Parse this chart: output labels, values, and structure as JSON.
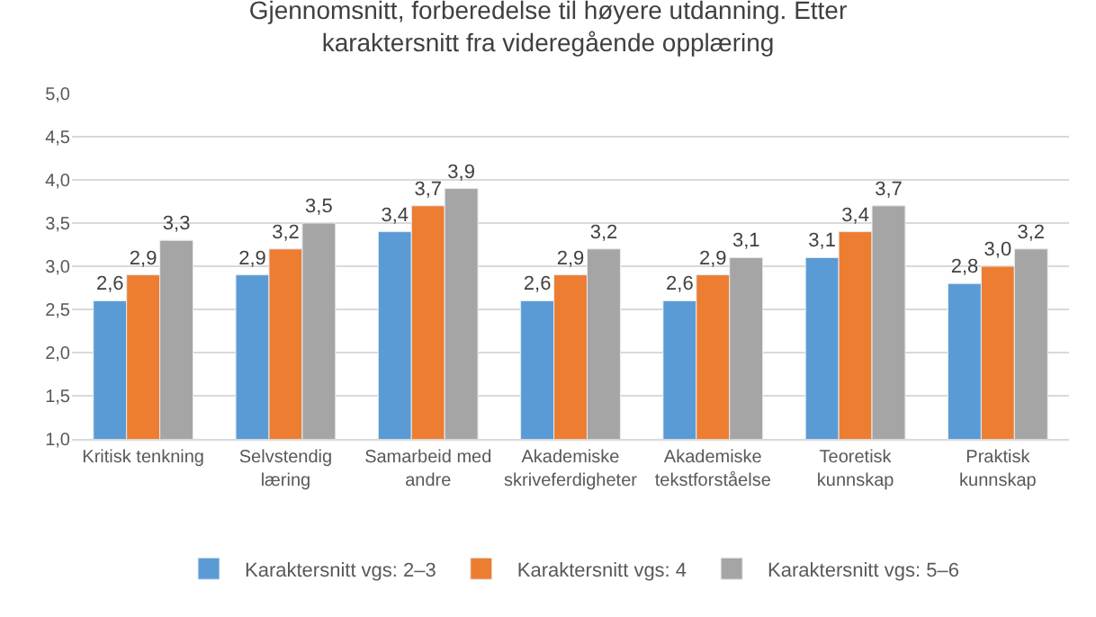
{
  "chart_data": {
    "type": "bar",
    "title": "Gjennomsnitt, forberedelse til høyere utdanning. Etter karaktersnitt fra videregående opplæring",
    "categories": [
      "Kritisk tenkning",
      "Selvstendig læring",
      "Samarbeid med andre",
      "Akademiske skriveferdigheter",
      "Akademiske tekstforståelse",
      "Teoretisk kunnskap",
      "Praktisk kunnskap"
    ],
    "series": [
      {
        "name": "Karaktersnitt vgs: 2–3",
        "color": "#5b9bd5",
        "values": [
          2.6,
          2.9,
          3.4,
          2.6,
          2.6,
          3.1,
          2.8
        ],
        "value_labels": [
          "2,6",
          "2,9",
          "3,4",
          "2,6",
          "2,6",
          "3,1",
          "2,8"
        ]
      },
      {
        "name": "Karaktersnitt vgs: 4",
        "color": "#ed7d31",
        "values": [
          2.9,
          3.2,
          3.7,
          2.9,
          2.9,
          3.4,
          3.0
        ],
        "value_labels": [
          "2,9",
          "3,2",
          "3,7",
          "2,9",
          "2,9",
          "3,4",
          "3,0"
        ]
      },
      {
        "name": "Karaktersnitt vgs: 5–6",
        "color": "#a5a5a5",
        "values": [
          3.3,
          3.5,
          3.9,
          3.2,
          3.1,
          3.7,
          3.2
        ],
        "value_labels": [
          "3,3",
          "3,5",
          "3,9",
          "3,2",
          "3,1",
          "3,7",
          "3,2"
        ]
      }
    ],
    "ylim": [
      1,
      5
    ],
    "yticks": [
      {
        "value": 1,
        "label": "1,0"
      },
      {
        "value": 1.5,
        "label": "1,5"
      },
      {
        "value": 2,
        "label": "2,0"
      },
      {
        "value": 2.5,
        "label": "2,5"
      },
      {
        "value": 3,
        "label": "3,0"
      },
      {
        "value": 3.5,
        "label": "3,5"
      },
      {
        "value": 4,
        "label": "4,0"
      },
      {
        "value": 4.5,
        "label": "4,5"
      },
      {
        "value": 5,
        "label": "5,0"
      }
    ],
    "grid": "y",
    "legend": "bottom"
  }
}
